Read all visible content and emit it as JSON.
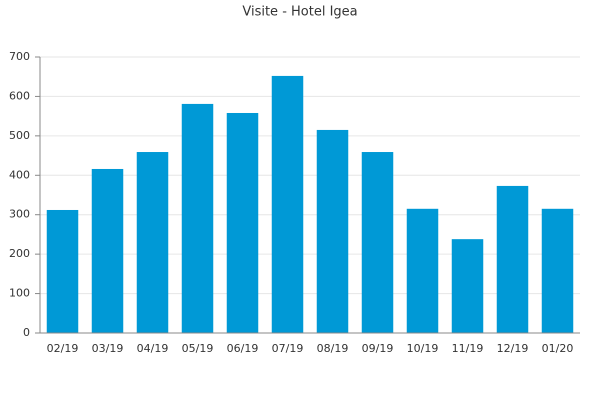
{
  "chart_data": {
    "type": "bar",
    "title": "Visite - Hotel Igea",
    "categories": [
      "02/19",
      "03/19",
      "04/19",
      "05/19",
      "06/19",
      "07/19",
      "08/19",
      "09/19",
      "10/19",
      "11/19",
      "12/19",
      "01/20"
    ],
    "values": [
      312,
      416,
      459,
      581,
      558,
      652,
      515,
      459,
      315,
      238,
      373,
      315
    ],
    "color": "#0099d6",
    "ylim": [
      0,
      700
    ],
    "yticks": [
      0,
      100,
      200,
      300,
      400,
      500,
      600,
      700
    ],
    "grid": true
  }
}
